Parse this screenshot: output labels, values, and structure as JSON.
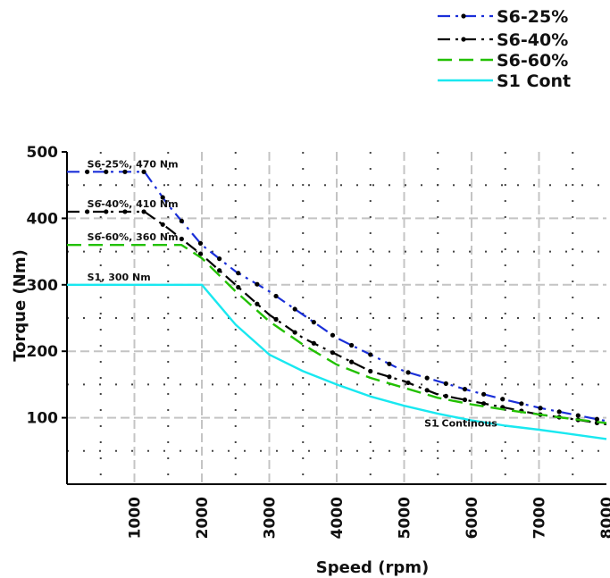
{
  "chart_data": {
    "type": "line",
    "title": "",
    "xlabel": "Speed (rpm)",
    "ylabel": "Torque (Nm)",
    "xlim": [
      0,
      8000
    ],
    "ylim": [
      0,
      500
    ],
    "x_ticks": [
      "1000",
      "2000",
      "3000",
      "4000",
      "5000",
      "6000",
      "7000",
      "8000"
    ],
    "y_ticks": [
      "100",
      "200",
      "300",
      "400",
      "500"
    ],
    "grid": true,
    "legend_position": "top-right",
    "series": [
      {
        "name": "S6-25%",
        "color": "#1a2fd8",
        "style": "dash-dot-marker",
        "x": [
          0,
          1150,
          1500,
          2000,
          2500,
          3000,
          3500,
          4000,
          4500,
          5000,
          5500,
          6000,
          6500,
          7000,
          7500,
          8000
        ],
        "y": [
          470,
          470,
          420,
          360,
          320,
          290,
          255,
          220,
          195,
          170,
          155,
          140,
          127,
          115,
          105,
          95
        ]
      },
      {
        "name": "S6-40%",
        "color": "#000000",
        "style": "dash-dot-marker",
        "x": [
          0,
          1150,
          1500,
          2000,
          2500,
          3000,
          3500,
          4000,
          4500,
          5000,
          5500,
          6000,
          6500,
          7000,
          7500,
          8000
        ],
        "y": [
          410,
          410,
          385,
          345,
          300,
          255,
          220,
          195,
          170,
          155,
          135,
          125,
          115,
          105,
          98,
          90
        ]
      },
      {
        "name": "S6-60%",
        "color": "#22c000",
        "style": "dashed",
        "x": [
          0,
          1700,
          2000,
          2500,
          3000,
          3500,
          4000,
          4500,
          5000,
          5500,
          6000,
          6500,
          7000,
          7500,
          8000
        ],
        "y": [
          360,
          360,
          340,
          290,
          245,
          210,
          180,
          160,
          145,
          130,
          120,
          112,
          105,
          98,
          92
        ]
      },
      {
        "name": "S1 Cont",
        "color": "#19e8f0",
        "style": "solid",
        "x": [
          0,
          2000,
          2500,
          3000,
          3500,
          4000,
          4500,
          5000,
          5500,
          6000,
          6500,
          7000,
          7500,
          8000
        ],
        "y": [
          300,
          300,
          240,
          195,
          170,
          150,
          132,
          118,
          106,
          96,
          88,
          82,
          75,
          68
        ]
      }
    ],
    "annotations": [
      {
        "text": "S6-25%, 470 Nm",
        "x": 300,
        "y": 470
      },
      {
        "text": "S6-40%, 410 Nm",
        "x": 300,
        "y": 410
      },
      {
        "text": "S6-60%, 360 Nm",
        "x": 300,
        "y": 360
      },
      {
        "text": "S1, 300 Nm",
        "x": 300,
        "y": 300
      },
      {
        "text": "S1 Continous",
        "x": 5300,
        "y": 80
      }
    ]
  }
}
